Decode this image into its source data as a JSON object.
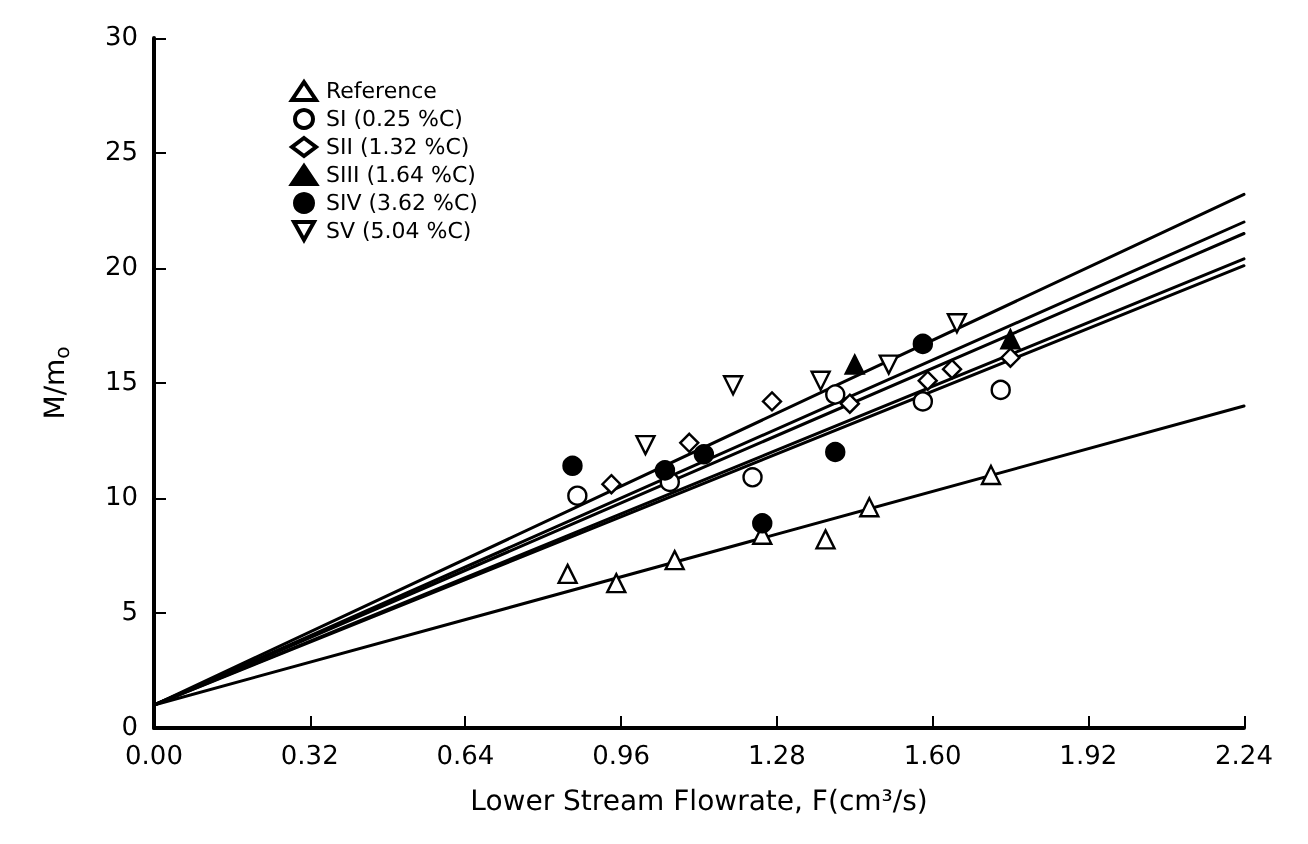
{
  "chart_data": {
    "type": "scatter",
    "xlabel": "Lower Stream Flowrate, F(cm³/s)",
    "ylabel": "M/m$_{o}$",
    "xlim": [
      0,
      2.24
    ],
    "xticks": [
      {
        "value": 0,
        "label": "0.00"
      },
      {
        "value": 0.32,
        "label": "0.32"
      },
      {
        "value": 0.64,
        "label": "0.64"
      },
      {
        "value": 0.96,
        "label": "0.96"
      },
      {
        "value": 1.28,
        "label": "1.28"
      },
      {
        "value": 1.6,
        "label": "1.60"
      },
      {
        "value": 1.92,
        "label": "1.92"
      },
      {
        "value": 2.24,
        "label": "2.24"
      }
    ],
    "ylim": [
      0,
      30
    ],
    "yticks": [
      0,
      5,
      10,
      15,
      20,
      25,
      30
    ],
    "grid": false,
    "legend": "top left",
    "series": [
      {
        "name": "Reference",
        "color": "#ffffff",
        "marker": "triangle",
        "x": [
          0.85,
          0.95,
          1.07,
          1.25,
          1.38,
          1.47,
          1.72
        ],
        "values": [
          6.7,
          6.3,
          7.3,
          8.4,
          8.2,
          9.6,
          11.0
        ]
      },
      {
        "name": "SI (0.25 %C)",
        "color": "#ffffff",
        "marker": "circle",
        "x": [
          0.87,
          1.06,
          1.23,
          1.4,
          1.58,
          1.74
        ],
        "values": [
          10.1,
          10.7,
          10.9,
          14.5,
          14.2,
          14.7
        ]
      },
      {
        "name": "SII (1.32 %C)",
        "color": "#ffffff",
        "marker": "diamond",
        "x": [
          0.94,
          1.1,
          1.27,
          1.43,
          1.59,
          1.64,
          1.76
        ],
        "values": [
          10.6,
          12.4,
          14.2,
          14.1,
          15.1,
          15.6,
          16.1
        ]
      },
      {
        "name": "SIII (1.64 %C)",
        "color": "#000000",
        "marker": "triangle",
        "x": [
          1.44,
          1.76
        ],
        "values": [
          15.8,
          16.9
        ]
      },
      {
        "name": "SIV (3.62 %C)",
        "color": "#000000",
        "marker": "circle",
        "x": [
          0.86,
          1.05,
          1.13,
          1.25,
          1.4,
          1.58
        ],
        "values": [
          11.4,
          11.2,
          11.9,
          8.9,
          12.0,
          16.7
        ]
      },
      {
        "name": "SV (5.04 %C)",
        "color": "#ffffff",
        "marker": "triangle-down",
        "x": [
          1.01,
          1.19,
          1.37,
          1.51,
          1.65
        ],
        "values": [
          12.3,
          14.9,
          15.1,
          15.8,
          17.6
        ]
      },
      {
        "type": "line",
        "color": "#000000",
        "x": [
          0,
          2.24
        ],
        "values": [
          1,
          14.0
        ]
      },
      {
        "type": "line",
        "color": "#000000",
        "x": [
          0,
          2.24
        ],
        "values": [
          1,
          20.1
        ]
      },
      {
        "type": "line",
        "color": "#000000",
        "x": [
          0,
          2.24
        ],
        "values": [
          1,
          20.4
        ]
      },
      {
        "type": "line",
        "color": "#000000",
        "x": [
          0,
          2.24
        ],
        "values": [
          1,
          21.5
        ]
      },
      {
        "type": "line",
        "color": "#000000",
        "x": [
          0,
          2.24
        ],
        "values": [
          1,
          22.0
        ]
      },
      {
        "type": "line",
        "color": "#000000",
        "x": [
          0,
          2.24
        ],
        "values": [
          1,
          23.2
        ]
      }
    ]
  }
}
